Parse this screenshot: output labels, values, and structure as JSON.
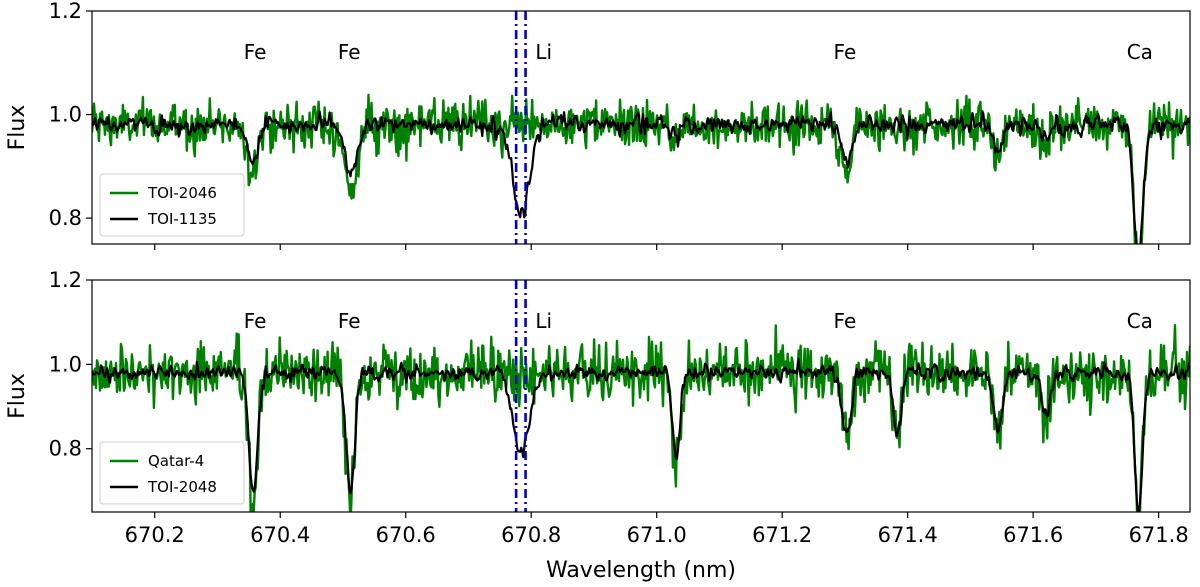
{
  "chart_data": [
    {
      "type": "line",
      "panel": "top",
      "xlabel": "",
      "ylabel": "Flux",
      "xlim": [
        670.1,
        671.85
      ],
      "ylim": [
        0.75,
        1.2
      ],
      "y_ticks": [
        0.8,
        1.0,
        1.2
      ],
      "y_tick_labels": [
        "0.8",
        "1.0",
        "1.2"
      ],
      "x_ticks": [
        670.2,
        670.4,
        670.6,
        670.8,
        671.0,
        671.2,
        671.4,
        671.6,
        671.8
      ],
      "x_tick_labels_shown": false,
      "grid": false,
      "legend_position": "lower-left",
      "series": [
        {
          "name": "TOI-2046",
          "color": "#008000"
        },
        {
          "name": "TOI-1135",
          "color": "#000000"
        }
      ],
      "line_labels": [
        {
          "text": "Fe",
          "x": 670.36
        },
        {
          "text": "Fe",
          "x": 670.51
        },
        {
          "text": "Li",
          "x": 670.82
        },
        {
          "text": "Fe",
          "x": 671.3
        },
        {
          "text": "Ca",
          "x": 671.77
        }
      ],
      "vlines": [
        670.776,
        670.791
      ],
      "vline_color": "#0000cc",
      "absorption_features": [
        {
          "center": 670.357,
          "width": 0.009,
          "depth_a": 0.08,
          "depth_b": 0.07
        },
        {
          "center": 670.512,
          "width": 0.01,
          "depth_a": 0.13,
          "depth_b": 0.09
        },
        {
          "center": 670.784,
          "width": 0.013,
          "depth_a": 0.0,
          "depth_b": 0.17
        },
        {
          "center": 671.031,
          "width": 0.006,
          "depth_a": 0.03,
          "depth_b": 0.025
        },
        {
          "center": 671.303,
          "width": 0.008,
          "depth_a": 0.1,
          "depth_b": 0.07
        },
        {
          "center": 671.544,
          "width": 0.008,
          "depth_a": 0.06,
          "depth_b": 0.05
        },
        {
          "center": 671.62,
          "width": 0.007,
          "depth_a": 0.04,
          "depth_b": 0.03
        },
        {
          "center": 671.768,
          "width": 0.007,
          "depth_a": 0.26,
          "depth_b": 0.26
        }
      ],
      "continuum": 0.98,
      "noise_a": 0.022,
      "noise_b": 0.012
    },
    {
      "type": "line",
      "panel": "bottom",
      "xlabel": "Wavelength (nm)",
      "ylabel": "Flux",
      "xlim": [
        670.1,
        671.85
      ],
      "ylim": [
        0.65,
        1.2
      ],
      "y_ticks": [
        0.8,
        1.0,
        1.2
      ],
      "y_tick_labels": [
        "0.8",
        "1.0",
        "1.2"
      ],
      "x_ticks": [
        670.2,
        670.4,
        670.6,
        670.8,
        671.0,
        671.2,
        671.4,
        671.6,
        671.8
      ],
      "x_tick_labels": [
        "670.2",
        "670.4",
        "670.6",
        "670.8",
        "671.0",
        "671.2",
        "671.4",
        "671.6",
        "671.8"
      ],
      "grid": false,
      "legend_position": "lower-left",
      "series": [
        {
          "name": "Qatar-4",
          "color": "#008000"
        },
        {
          "name": "TOI-2048",
          "color": "#000000"
        }
      ],
      "line_labels": [
        {
          "text": "Fe",
          "x": 670.36
        },
        {
          "text": "Fe",
          "x": 670.51
        },
        {
          "text": "Li",
          "x": 670.82
        },
        {
          "text": "Fe",
          "x": 671.3
        },
        {
          "text": "Ca",
          "x": 671.77
        }
      ],
      "vlines": [
        670.776,
        670.791
      ],
      "vline_color": "#0000cc",
      "absorption_features": [
        {
          "center": 670.357,
          "width": 0.007,
          "depth_a": 0.32,
          "depth_b": 0.3
        },
        {
          "center": 670.512,
          "width": 0.007,
          "depth_a": 0.3,
          "depth_b": 0.28
        },
        {
          "center": 670.784,
          "width": 0.013,
          "depth_a": 0.0,
          "depth_b": 0.19
        },
        {
          "center": 671.031,
          "width": 0.006,
          "depth_a": 0.22,
          "depth_b": 0.2
        },
        {
          "center": 671.303,
          "width": 0.007,
          "depth_a": 0.17,
          "depth_b": 0.15
        },
        {
          "center": 671.383,
          "width": 0.006,
          "depth_a": 0.16,
          "depth_b": 0.15
        },
        {
          "center": 671.544,
          "width": 0.007,
          "depth_a": 0.15,
          "depth_b": 0.14
        },
        {
          "center": 671.62,
          "width": 0.007,
          "depth_a": 0.11,
          "depth_b": 0.1
        },
        {
          "center": 671.768,
          "width": 0.006,
          "depth_a": 0.34,
          "depth_b": 0.34
        }
      ],
      "continuum": 0.98,
      "noise_a": 0.035,
      "noise_b": 0.012
    }
  ]
}
